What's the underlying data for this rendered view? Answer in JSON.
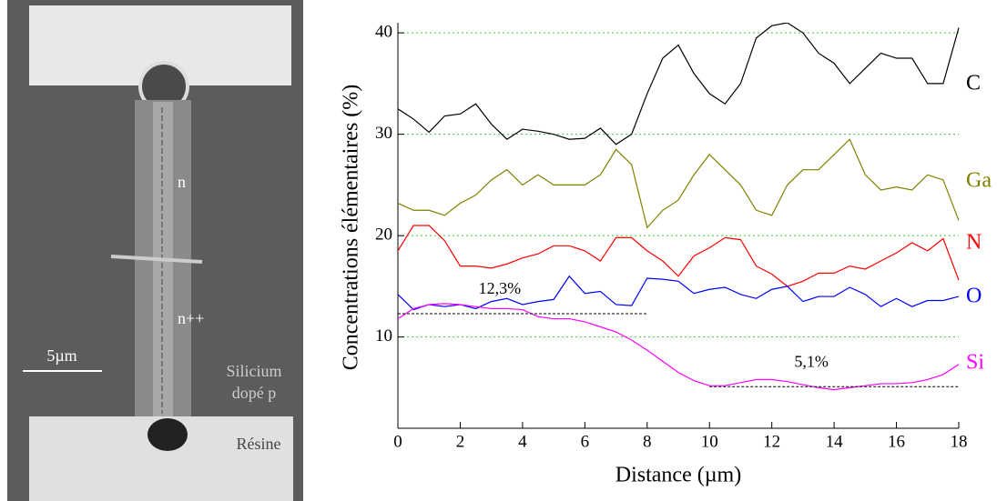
{
  "image_labels": {
    "n": "n",
    "npp": "n++",
    "scale": "5µm",
    "substrate": [
      "Silicium",
      "dopé p"
    ],
    "resin": "Résine"
  },
  "chart_data": {
    "type": "line",
    "y_label": "Concentrations élémentaires (%)",
    "x_label": "Distance (µm)",
    "x": [
      0,
      0.5,
      1,
      1.5,
      2,
      2.5,
      3,
      3.5,
      4,
      4.5,
      5,
      5.5,
      6,
      6.5,
      7,
      7.5,
      8,
      8.5,
      9,
      9.5,
      10,
      10.5,
      11,
      11.5,
      12,
      12.5,
      13,
      13.5,
      14,
      14.5,
      15,
      15.5,
      16,
      16.5,
      17,
      17.5,
      18
    ],
    "series": [
      {
        "name": "C",
        "color": "#000000",
        "values": [
          32.5,
          31.5,
          30.2,
          31.8,
          32,
          33,
          31,
          29.5,
          30.5,
          30.3,
          30,
          29.5,
          29.6,
          30.6,
          29,
          30,
          34,
          37.5,
          38.8,
          36,
          34,
          33,
          35,
          39.5,
          40.7,
          41,
          40,
          38,
          37,
          35,
          36.5,
          38,
          37.5,
          37.5,
          35,
          35,
          40.5
        ]
      },
      {
        "name": "Ga",
        "color": "#808000",
        "values": [
          23.2,
          22.5,
          22.5,
          22,
          23.2,
          24,
          25.5,
          26.5,
          25,
          26,
          25,
          25,
          25,
          26,
          28.5,
          27,
          20.8,
          22.5,
          23.5,
          26,
          28,
          26.5,
          25,
          22.5,
          22,
          25,
          26.5,
          26.5,
          28,
          29.5,
          26,
          24.5,
          24.8,
          24.5,
          26,
          25.5,
          21.5
        ]
      },
      {
        "name": "N",
        "color": "#ff0000",
        "values": [
          18.5,
          21,
          21,
          19.5,
          17,
          17,
          16.8,
          17.2,
          17.8,
          18.2,
          19,
          19,
          18.5,
          17.5,
          19.8,
          19.8,
          18.5,
          17.5,
          16,
          18,
          18.8,
          19.8,
          19.6,
          17,
          16.2,
          15,
          15.5,
          16.3,
          16.3,
          17,
          16.7,
          17.5,
          18.3,
          19.3,
          18.5,
          19.7,
          15.6
        ]
      },
      {
        "name": "O",
        "color": "#0000ff",
        "values": [
          14.2,
          12.7,
          13.2,
          13,
          13.2,
          12.8,
          13.5,
          13.8,
          13.2,
          13.5,
          13.7,
          16,
          14.3,
          14.5,
          13.2,
          13.1,
          15.8,
          15.7,
          15.5,
          14.3,
          14.7,
          14.9,
          14.2,
          13.8,
          14.7,
          15,
          13.5,
          14,
          14,
          14.9,
          14.2,
          13,
          13.8,
          13,
          13.6,
          13.6,
          14
        ]
      },
      {
        "name": "Si",
        "color": "#ff00ff",
        "values": [
          11.8,
          12.8,
          13.2,
          13.3,
          13.2,
          13,
          12.8,
          12.8,
          12.7,
          12,
          11.8,
          11.8,
          11.5,
          11,
          10.5,
          9.7,
          8.7,
          7.6,
          6.5,
          5.7,
          5.2,
          5.2,
          5.5,
          5.8,
          5.8,
          5.6,
          5.3,
          5,
          4.8,
          5,
          5.2,
          5.4,
          5.4,
          5.5,
          5.8,
          6.3,
          7.3
        ]
      }
    ],
    "annotations": [
      {
        "text": "12,3%",
        "value": 12.3,
        "x": [
          0,
          8
        ]
      },
      {
        "text": "5,1%",
        "value": 5.1,
        "x": [
          10,
          18
        ]
      }
    ],
    "xlim": [
      0,
      18
    ],
    "xticks": [
      0,
      2,
      4,
      6,
      8,
      10,
      12,
      14,
      16,
      18
    ],
    "ylim": [
      1,
      41
    ],
    "yticks": [
      10,
      20,
      30,
      40
    ],
    "grid": true,
    "grid_color": "#33cc33"
  }
}
